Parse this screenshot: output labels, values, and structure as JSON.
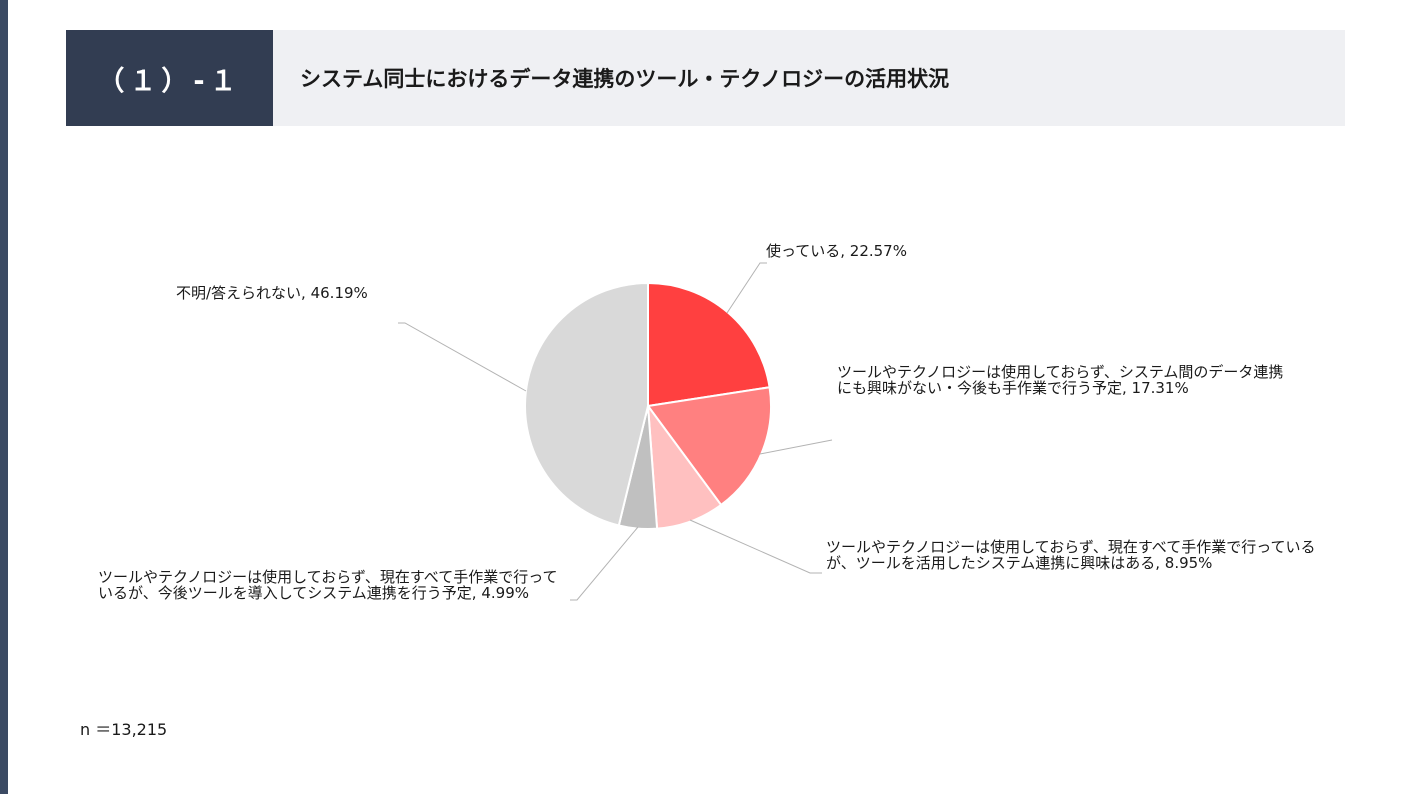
{
  "header": {
    "section_number": "（１）-１",
    "title": "システム同士におけるデータ連携のツール・テクノロジーの活用状況"
  },
  "chart_data": {
    "type": "pie",
    "slices": [
      {
        "label": "使っている",
        "value": 22.57,
        "display": "使っている, 22.57%",
        "color": "#ff4040"
      },
      {
        "label": "ツールやテクノロジーは使用しておらず、システム間のデータ連携にも興味がない・今後も手作業で行う予定",
        "value": 17.31,
        "display": "ツールやテクノロジーは使用しておらず、システム間のデータ連携にも興味がない・今後も手作業で行う予定, 17.31%",
        "color": "#ff8080"
      },
      {
        "label": "ツールやテクノロジーは使用しておらず、現在すべて手作業で行っているが、ツールを活用したシステム連携に興味はある",
        "value": 8.95,
        "display": "ツールやテクノロジーは使用しておらず、現在すべて手作業で行っているが、ツールを活用したシステム連携に興味はある, 8.95%",
        "color": "#ffc0c0"
      },
      {
        "label": "ツールやテクノロジーは使用しておらず、現在すべて手作業で行っているが、今後ツールを導入してシステム連携を行う予定",
        "value": 4.99,
        "display": "ツールやテクノロジーは使用しておらず、現在すべて手作業で行っているが、今後ツールを導入してシステム連携を行う予定, 4.99%",
        "color": "#c0c0c0"
      },
      {
        "label": "不明/答えられない",
        "value": 46.19,
        "display": "不明/答えられない, 46.19%",
        "color": "#d9d9d9"
      }
    ]
  },
  "footer": {
    "n": "n ＝13,215"
  }
}
